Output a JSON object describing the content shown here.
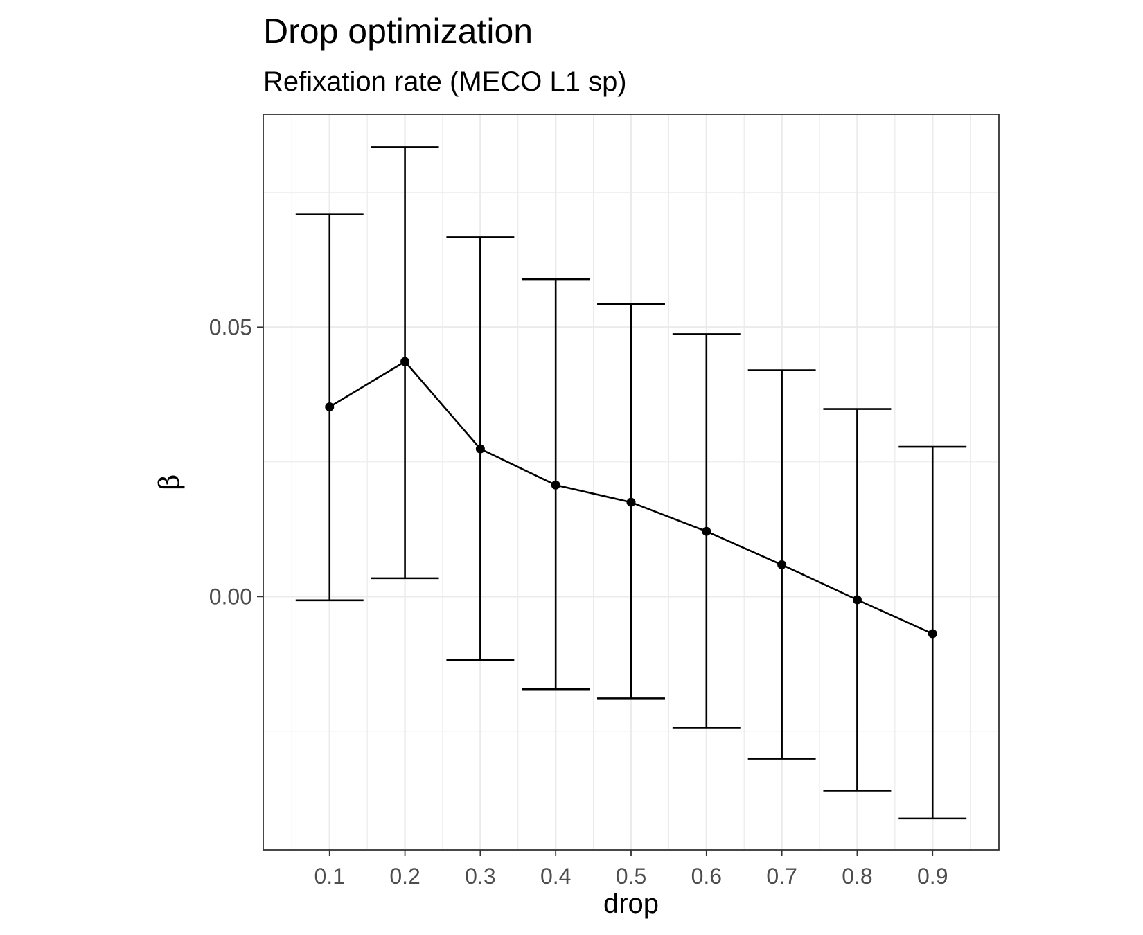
{
  "chart_data": {
    "type": "line",
    "title": "Drop optimization",
    "subtitle": "Refixation rate (MECO L1 sp)",
    "xlabel": "drop",
    "ylabel": "β",
    "x": [
      0.1,
      0.2,
      0.3,
      0.4,
      0.5,
      0.6,
      0.7,
      0.8,
      0.9
    ],
    "x_tick_labels": [
      "0.1",
      "0.2",
      "0.3",
      "0.4",
      "0.5",
      "0.6",
      "0.7",
      "0.8",
      "0.9"
    ],
    "y_ticks": [
      0.0,
      0.05
    ],
    "y_tick_labels": [
      "0.00",
      "0.05"
    ],
    "xlim": [
      0.012,
      0.988
    ],
    "ylim": [
      -0.047,
      0.0895
    ],
    "grid": true,
    "series": [
      {
        "values": [
          0.0352,
          0.0436,
          0.0274,
          0.0207,
          0.0175,
          0.0121,
          0.0059,
          -0.0006,
          -0.0069
        ],
        "lower": [
          -0.0007,
          0.0034,
          -0.0118,
          -0.0172,
          -0.0189,
          -0.0243,
          -0.0301,
          -0.036,
          -0.0412
        ],
        "upper": [
          0.0709,
          0.0834,
          0.0667,
          0.0589,
          0.0543,
          0.0487,
          0.042,
          0.0348,
          0.0278
        ],
        "color": "#000000"
      }
    ]
  }
}
